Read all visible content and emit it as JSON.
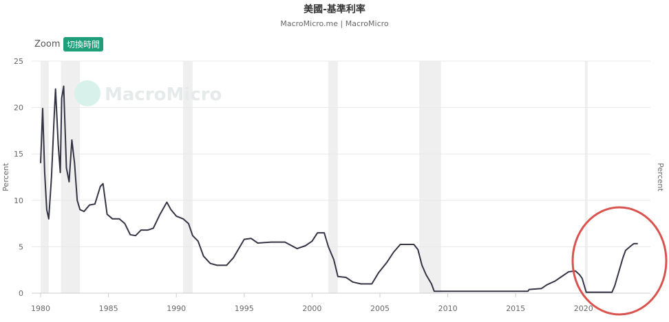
{
  "chart_data": {
    "type": "line",
    "title": "美國-基準利率",
    "subtitle": "MacroMicro.me | MacroMicro",
    "ylabel_left": "Percent",
    "ylabel_right": "Percent",
    "watermark": "MacroMicro",
    "xlim": [
      1980,
      2024
    ],
    "ylim": [
      0,
      25
    ],
    "x_ticks": [
      "1980",
      "1985",
      "1990",
      "1995",
      "2000",
      "2005",
      "2010",
      "2015",
      "2020"
    ],
    "y_ticks": [
      "0",
      "5",
      "10",
      "15",
      "20",
      "25"
    ],
    "grid": true,
    "recession_bands": [
      [
        1980.0,
        1980.6
      ],
      [
        1981.5,
        1982.9
      ],
      [
        1990.5,
        1991.2
      ],
      [
        2001.2,
        2001.9
      ],
      [
        2007.9,
        2009.5
      ],
      [
        2020.1,
        2020.3
      ]
    ],
    "annotation": "red-circle-highlight",
    "colors": {
      "line": "#333344",
      "recession": "#efefef",
      "highlight": "#d9534f",
      "button": "#1f9e7a"
    },
    "series": [
      {
        "values": [
          [
            1980.0,
            14.0
          ],
          [
            1980.15,
            19.9
          ],
          [
            1980.3,
            13.0
          ],
          [
            1980.45,
            9.0
          ],
          [
            1980.6,
            8.0
          ],
          [
            1980.8,
            12.5
          ],
          [
            1981.0,
            19.0
          ],
          [
            1981.1,
            22.0
          ],
          [
            1981.3,
            16.0
          ],
          [
            1981.45,
            13.0
          ],
          [
            1981.55,
            21.0
          ],
          [
            1981.7,
            22.3
          ],
          [
            1981.9,
            13.5
          ],
          [
            1982.1,
            12.0
          ],
          [
            1982.3,
            16.5
          ],
          [
            1982.5,
            14.0
          ],
          [
            1982.7,
            10.0
          ],
          [
            1982.9,
            9.0
          ],
          [
            1983.2,
            8.8
          ],
          [
            1983.6,
            9.5
          ],
          [
            1984.0,
            9.6
          ],
          [
            1984.4,
            11.5
          ],
          [
            1984.6,
            11.8
          ],
          [
            1984.9,
            8.5
          ],
          [
            1985.3,
            8.0
          ],
          [
            1985.8,
            8.0
          ],
          [
            1986.2,
            7.5
          ],
          [
            1986.6,
            6.3
          ],
          [
            1987.0,
            6.2
          ],
          [
            1987.4,
            6.8
          ],
          [
            1987.9,
            6.8
          ],
          [
            1988.3,
            7.0
          ],
          [
            1988.8,
            8.5
          ],
          [
            1989.3,
            9.8
          ],
          [
            1989.6,
            9.0
          ],
          [
            1990.0,
            8.3
          ],
          [
            1990.5,
            8.0
          ],
          [
            1990.9,
            7.5
          ],
          [
            1991.2,
            6.2
          ],
          [
            1991.6,
            5.6
          ],
          [
            1992.0,
            4.0
          ],
          [
            1992.5,
            3.2
          ],
          [
            1993.0,
            3.0
          ],
          [
            1993.7,
            3.0
          ],
          [
            1994.2,
            3.8
          ],
          [
            1994.6,
            4.8
          ],
          [
            1995.0,
            5.8
          ],
          [
            1995.5,
            5.9
          ],
          [
            1996.0,
            5.4
          ],
          [
            1997.0,
            5.5
          ],
          [
            1998.0,
            5.5
          ],
          [
            1998.9,
            4.8
          ],
          [
            1999.5,
            5.1
          ],
          [
            2000.0,
            5.6
          ],
          [
            2000.4,
            6.5
          ],
          [
            2000.9,
            6.5
          ],
          [
            2001.2,
            5.0
          ],
          [
            2001.6,
            3.6
          ],
          [
            2001.9,
            1.8
          ],
          [
            2002.5,
            1.7
          ],
          [
            2003.0,
            1.2
          ],
          [
            2003.6,
            1.0
          ],
          [
            2004.4,
            1.0
          ],
          [
            2004.9,
            2.2
          ],
          [
            2005.5,
            3.3
          ],
          [
            2006.0,
            4.4
          ],
          [
            2006.5,
            5.25
          ],
          [
            2007.5,
            5.25
          ],
          [
            2007.8,
            4.7
          ],
          [
            2008.1,
            3.0
          ],
          [
            2008.4,
            2.0
          ],
          [
            2008.8,
            1.0
          ],
          [
            2009.0,
            0.2
          ],
          [
            2015.9,
            0.2
          ],
          [
            2016.0,
            0.4
          ],
          [
            2016.9,
            0.5
          ],
          [
            2017.3,
            0.9
          ],
          [
            2017.9,
            1.3
          ],
          [
            2018.3,
            1.7
          ],
          [
            2018.9,
            2.3
          ],
          [
            2019.4,
            2.4
          ],
          [
            2019.7,
            2.0
          ],
          [
            2019.9,
            1.6
          ],
          [
            2020.2,
            0.1
          ],
          [
            2022.1,
            0.1
          ],
          [
            2022.3,
            0.8
          ],
          [
            2022.6,
            2.3
          ],
          [
            2022.9,
            3.8
          ],
          [
            2023.1,
            4.6
          ],
          [
            2023.5,
            5.1
          ],
          [
            2023.7,
            5.33
          ],
          [
            2024.0,
            5.33
          ]
        ]
      }
    ]
  },
  "toolbar": {
    "zoom_label": "Zoom",
    "switch_button": "切換時間"
  }
}
